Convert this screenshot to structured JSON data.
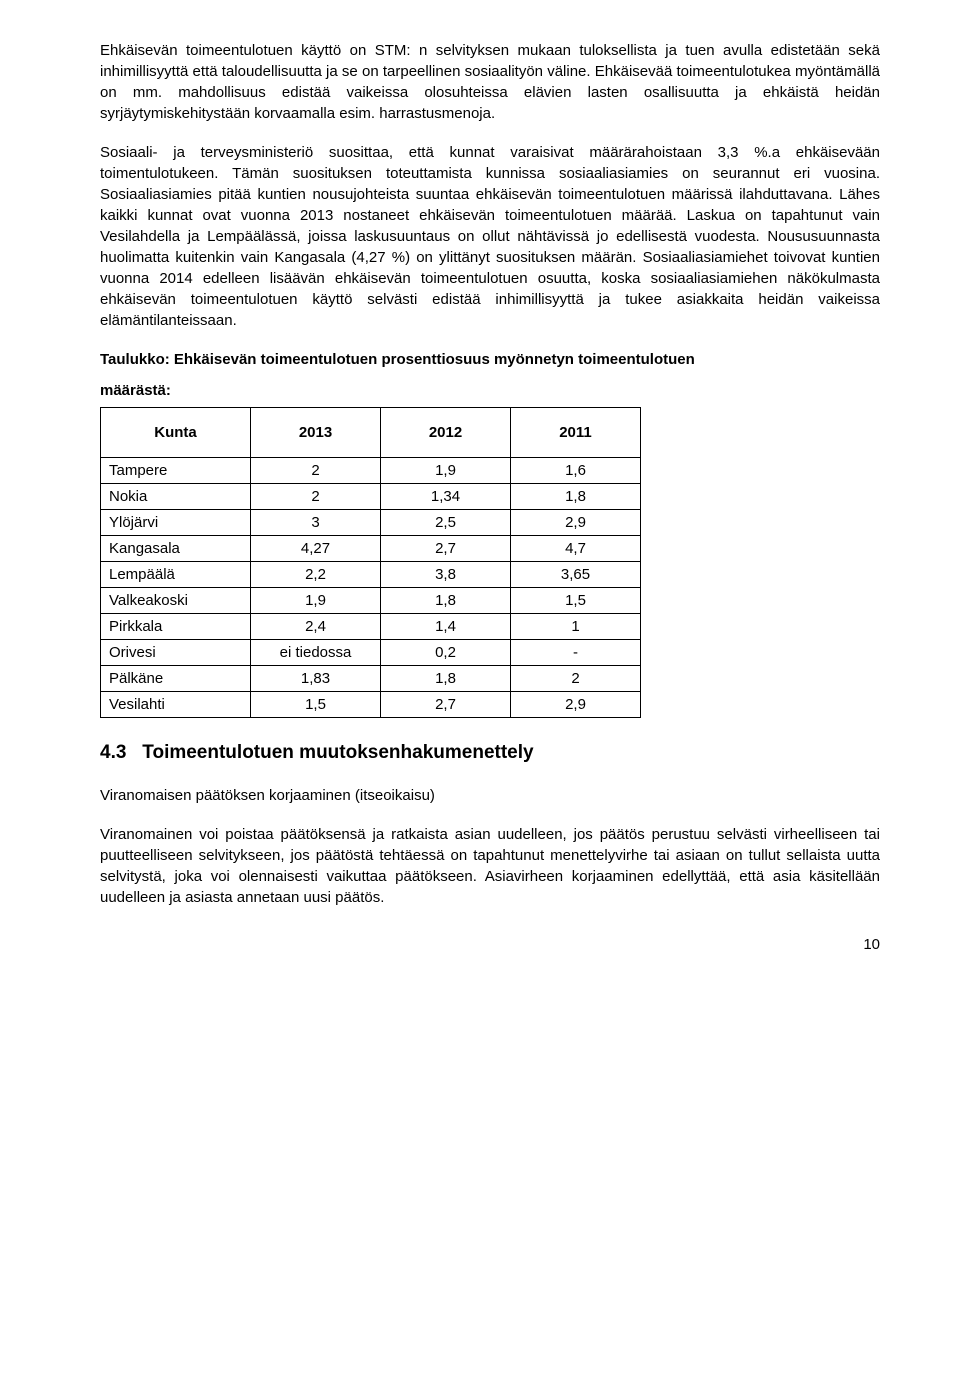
{
  "paragraphs": {
    "p1": "Ehkäisevän toimeentulotuen käyttö on STM: n selvityksen mukaan tuloksellista ja tuen avulla edistetään sekä inhimillisyyttä että taloudellisuutta ja se on tarpeellinen sosiaalityön väline. Ehkäisevää toimeentulotukea myöntämällä on mm. mahdollisuus edistää vaikeissa olosuhteissa elävien lasten osallisuutta ja ehkäistä heidän syrjäytymiskehitystään korvaamalla esim. harrastusmenoja.",
    "p2": "Sosiaali- ja terveysministeriö suosittaa, että kunnat varaisivat määrärahoistaan 3,3 %.a ehkäisevään toimentulotukeen. Tämän suosituksen toteuttamista kunnissa sosiaaliasiamies on seurannut eri vuosina. Sosiaaliasiamies pitää kuntien nousujohteista suuntaa ehkäisevän toimeentulotuen määrissä ilahduttavana. Lähes kaikki kunnat ovat vuonna 2013 nostaneet ehkäisevän toimeentulotuen määrää. Laskua on tapahtunut vain Vesilahdella ja Lempäälässä, joissa laskusuuntaus on ollut nähtävissä jo edellisestä vuodesta. Noususuunnasta huolimatta kuitenkin vain Kangasala (4,27 %) on ylittänyt suosituksen määrän. Sosiaaliasiamiehet toivovat kuntien vuonna 2014 edelleen lisäävän ehkäisevän toimeentulotuen osuutta, koska sosiaaliasiamiehen näkökulmasta ehkäisevän toimeentulotuen käyttö selvästi edistää inhimillisyyttä ja tukee asiakkaita heidän vaikeissa elämäntilanteissaan.",
    "p3": "Viranomainen voi poistaa päätöksensä ja ratkaista asian uudelleen, jos päätös perustuu selvästi virheelliseen tai puutteelliseen selvitykseen, jos päätöstä tehtäessä on tapahtunut menettelyvirhe tai asiaan on tullut sellaista uutta selvitystä, joka voi olennaisesti vaikuttaa päätökseen. Asiavirheen korjaaminen edellyttää, että asia käsitellään uudelleen ja asiasta annetaan uusi päätös."
  },
  "table": {
    "caption_line1": "Taulukko: Ehkäisevän toimeentulotuen prosenttiosuus myönnetyn toimeentulotuen",
    "caption_line2": "määrästä:",
    "columns": [
      "Kunta",
      "2013",
      "2012",
      "2011"
    ],
    "rows": [
      [
        "Tampere",
        "2",
        "1,9",
        "1,6"
      ],
      [
        "Nokia",
        "2",
        "1,34",
        "1,8"
      ],
      [
        "Ylöjärvi",
        "3",
        "2,5",
        "2,9"
      ],
      [
        "Kangasala",
        "4,27",
        "2,7",
        "4,7"
      ],
      [
        "Lempäälä",
        "2,2",
        "3,8",
        "3,65"
      ],
      [
        "Valkeakoski",
        "1,9",
        "1,8",
        "1,5"
      ],
      [
        "Pirkkala",
        "2,4",
        "1,4",
        "1"
      ],
      [
        "Orivesi",
        "ei tiedossa",
        "0,2",
        "-"
      ],
      [
        "Pälkäne",
        "1,83",
        "1,8",
        "2"
      ],
      [
        "Vesilahti",
        "1,5",
        "2,7",
        "2,9"
      ]
    ]
  },
  "section": {
    "number": "4.3",
    "title": "Toimeentulotuen muutoksenhakumenettely"
  },
  "subheading": "Viranomaisen päätöksen korjaaminen (itseoikaisu)",
  "page_number": "10"
}
